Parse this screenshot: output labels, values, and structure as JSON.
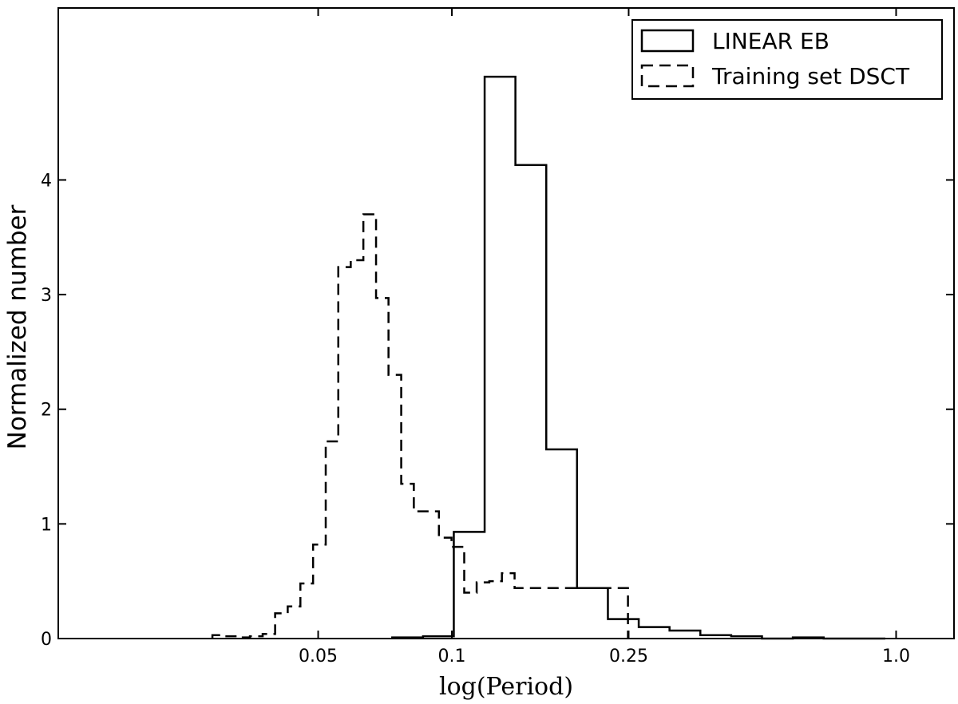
{
  "chart_data": {
    "type": "histogram",
    "x_scale": "log",
    "xlabel": "log(Period)",
    "ylabel": "Normalized number",
    "xlim": [
      0.013,
      1.35
    ],
    "ylim": [
      0,
      5.5
    ],
    "x_ticks": [
      {
        "value": 0.05,
        "label": "0.05"
      },
      {
        "value": 0.1,
        "label": "0.1"
      },
      {
        "value": 0.25,
        "label": "0.25"
      },
      {
        "value": 1.0,
        "label": "1.0"
      }
    ],
    "y_ticks": [
      {
        "value": 0,
        "label": "0"
      },
      {
        "value": 1,
        "label": "1"
      },
      {
        "value": 2,
        "label": "2"
      },
      {
        "value": 3,
        "label": "3"
      },
      {
        "value": 4,
        "label": "4"
      }
    ],
    "grid": false,
    "legend_position": "top-right",
    "series": [
      {
        "name": "LINEAR EB",
        "style": "solid",
        "edges": [
          0.0734,
          0.0861,
          0.101,
          0.1185,
          0.139,
          0.1631,
          0.1913,
          0.2245,
          0.2634,
          0.309,
          0.3625,
          0.4253,
          0.499,
          0.5855,
          0.6869,
          0.8059,
          0.9456
        ],
        "values": [
          0.01,
          0.02,
          0.93,
          4.9,
          4.13,
          1.65,
          0.44,
          0.17,
          0.1,
          0.07,
          0.03,
          0.02,
          0.0,
          0.01,
          0.0,
          0.0
        ]
      },
      {
        "name": "Training set DSCT",
        "style": "dashed",
        "edges": [
          0.0289,
          0.0308,
          0.0329,
          0.0351,
          0.0375,
          0.04,
          0.0427,
          0.0456,
          0.0487,
          0.052,
          0.0555,
          0.0592,
          0.0632,
          0.0675,
          0.072,
          0.0769,
          0.0821,
          0.0876,
          0.0935,
          0.0998,
          0.1066,
          0.1137,
          0.1214,
          0.1296,
          0.1384,
          0.1477,
          0.1577,
          0.1683,
          0.1797,
          0.1918,
          0.2048,
          0.2186,
          0.2333,
          0.2491
        ],
        "values": [
          0.03,
          0.02,
          0.01,
          0.02,
          0.04,
          0.22,
          0.28,
          0.48,
          0.82,
          1.72,
          3.24,
          3.3,
          3.7,
          2.97,
          2.3,
          1.35,
          1.11,
          1.11,
          0.88,
          0.8,
          0.4,
          0.49,
          0.5,
          0.57,
          0.44,
          0.44,
          0.44,
          0.44,
          0.44,
          0.44,
          0.44,
          0.44,
          0.44
        ]
      }
    ]
  }
}
